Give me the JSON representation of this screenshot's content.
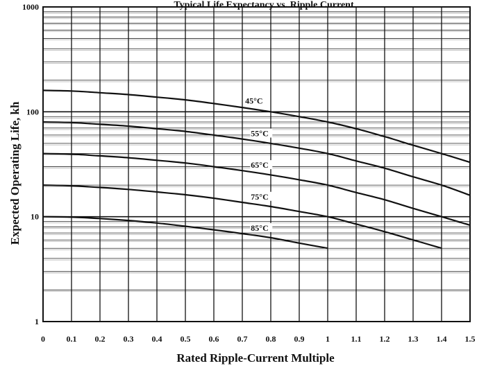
{
  "chart_data": {
    "type": "line",
    "title": "Typical Life Expectancy vs. Ripple Current",
    "xlabel": "Rated Ripple-Current Multiple",
    "ylabel": "Expected Operating Life, kh",
    "xlim": [
      0,
      1.5
    ],
    "ylim": [
      1,
      1000
    ],
    "y_scale": "log",
    "grid": true,
    "legend": "labels inline on curves",
    "x_ticks": [
      "0",
      "0.1",
      "0.2",
      "0.3",
      "0.4",
      "0.5",
      "0.6",
      "0.7",
      "0.8",
      "0.9",
      "1",
      "1.1",
      "1.2",
      "1.3",
      "1.4",
      "1.5"
    ],
    "x_tick_values": [
      0,
      0.1,
      0.2,
      0.3,
      0.4,
      0.5,
      0.6,
      0.7,
      0.8,
      0.9,
      1.0,
      1.1,
      1.2,
      1.3,
      1.4,
      1.5
    ],
    "y_ticks": [
      "1",
      "10",
      "100",
      "1000"
    ],
    "y_tick_values": [
      1,
      10,
      100,
      1000
    ],
    "series": [
      {
        "name": "45°C",
        "x": [
          0,
          0.1,
          0.2,
          0.3,
          0.4,
          0.5,
          0.6,
          0.7,
          0.8,
          0.9,
          1.0,
          1.1,
          1.2,
          1.3,
          1.4,
          1.5
        ],
        "y": [
          160,
          158,
          152,
          146,
          138,
          130,
          120,
          110,
          100,
          90,
          80,
          69,
          58,
          48,
          40,
          33
        ]
      },
      {
        "name": "55°C",
        "x": [
          0,
          0.1,
          0.2,
          0.3,
          0.4,
          0.5,
          0.6,
          0.7,
          0.8,
          0.9,
          1.0,
          1.1,
          1.2,
          1.3,
          1.4,
          1.5
        ],
        "y": [
          80,
          79,
          76,
          73,
          69,
          65,
          60,
          55,
          50,
          45,
          40,
          34,
          29,
          24,
          20,
          16
        ]
      },
      {
        "name": "65°C",
        "x": [
          0,
          0.1,
          0.2,
          0.3,
          0.4,
          0.5,
          0.6,
          0.7,
          0.8,
          0.9,
          1.0,
          1.1,
          1.2,
          1.3,
          1.4,
          1.5
        ],
        "y": [
          40,
          39.5,
          38,
          36.5,
          34.5,
          32.5,
          30,
          27.5,
          25,
          22.5,
          20,
          17,
          14.5,
          12,
          10,
          8.3
        ]
      },
      {
        "name": "75°C",
        "x": [
          0,
          0.1,
          0.2,
          0.3,
          0.4,
          0.5,
          0.6,
          0.7,
          0.8,
          0.9,
          1.0,
          1.1,
          1.2,
          1.3,
          1.4
        ],
        "y": [
          20,
          19.7,
          19,
          18.2,
          17.2,
          16.2,
          15,
          13.7,
          12.5,
          11.2,
          10,
          8.5,
          7.2,
          6,
          5
        ]
      },
      {
        "name": "85°C",
        "x": [
          0,
          0.1,
          0.2,
          0.3,
          0.4,
          0.5,
          0.6,
          0.7,
          0.8,
          0.9,
          1.0
        ],
        "y": [
          10,
          9.9,
          9.6,
          9.2,
          8.7,
          8.1,
          7.5,
          6.9,
          6.3,
          5.6,
          5
        ]
      }
    ],
    "curve_labels": [
      {
        "text": "45°C",
        "series": "45°C",
        "at_x": 0.71
      },
      {
        "text": "55°C",
        "series": "55°C",
        "at_x": 0.73
      },
      {
        "text": "65°C",
        "series": "65°C",
        "at_x": 0.73
      },
      {
        "text": "75°C",
        "series": "75°C",
        "at_x": 0.73
      },
      {
        "text": "85°C",
        "series": "85°C",
        "at_x": 0.73
      }
    ],
    "style": {
      "line_color": "#111111",
      "grid_color": "#222222",
      "background": "#ffffff"
    }
  }
}
